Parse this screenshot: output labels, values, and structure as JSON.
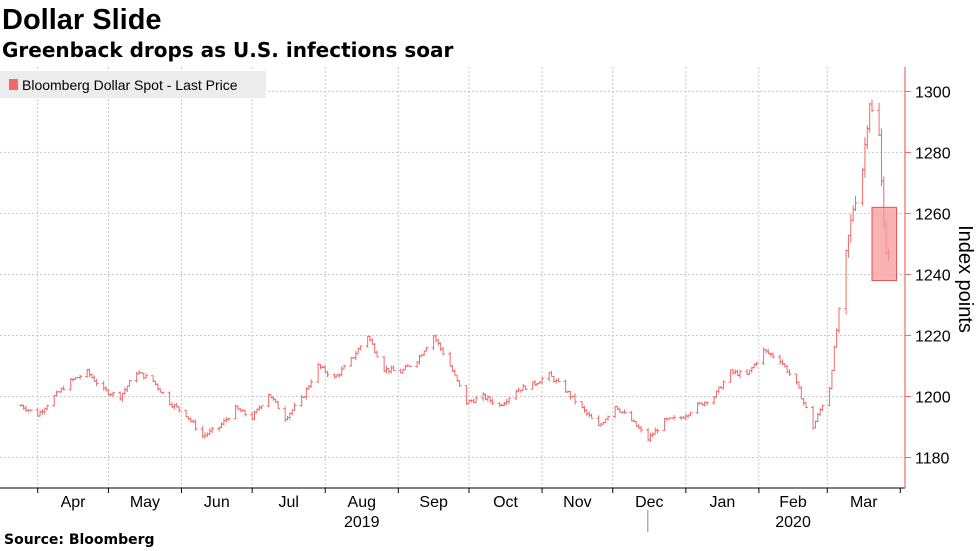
{
  "header": {
    "title": "Dollar Slide",
    "subtitle": "Greenback drops as U.S. infections soar"
  },
  "footer": {
    "source": "Source: Bloomberg"
  },
  "colors": {
    "series": "#f06a6a",
    "highlight_fill": "#f79a9a",
    "highlight_stroke": "#e15656",
    "grid": "#c8c8c8",
    "axis": "#f06a6a"
  },
  "chart_data": {
    "type": "line",
    "subtype": "ohlc-bar",
    "title": "Dollar Slide",
    "subtitle": "Greenback drops as U.S. infections soar",
    "xlabel": "",
    "ylabel": "Index points",
    "ylim": [
      1170,
      1308
    ],
    "yticks": [
      1180,
      1200,
      1220,
      1240,
      1260,
      1280,
      1300
    ],
    "y_axis_side": "right",
    "x_month_labels": [
      "Apr",
      "May",
      "Jun",
      "Jul",
      "Aug",
      "Sep",
      "Oct",
      "Nov",
      "Dec",
      "Jan",
      "Feb",
      "Mar"
    ],
    "x_year_labels": [
      "2019",
      "2020"
    ],
    "grid": true,
    "legend": {
      "position": "top-left",
      "entries": [
        "Bloomberg Dollar Spot - Last Price"
      ]
    },
    "series": [
      {
        "name": "Bloomberg Dollar Spot - Last Price",
        "x": [
          "2019-03-25",
          "2019-04-01",
          "2019-04-08",
          "2019-04-15",
          "2019-04-22",
          "2019-04-29",
          "2019-05-06",
          "2019-05-13",
          "2019-05-20",
          "2019-05-27",
          "2019-06-03",
          "2019-06-10",
          "2019-06-17",
          "2019-06-24",
          "2019-07-01",
          "2019-07-08",
          "2019-07-15",
          "2019-07-22",
          "2019-07-29",
          "2019-08-05",
          "2019-08-12",
          "2019-08-19",
          "2019-08-26",
          "2019-09-02",
          "2019-09-09",
          "2019-09-16",
          "2019-09-23",
          "2019-09-30",
          "2019-10-07",
          "2019-10-14",
          "2019-10-21",
          "2019-10-28",
          "2019-11-04",
          "2019-11-11",
          "2019-11-18",
          "2019-11-25",
          "2019-12-02",
          "2019-12-09",
          "2019-12-16",
          "2019-12-23",
          "2019-12-30",
          "2020-01-06",
          "2020-01-13",
          "2020-01-20",
          "2020-01-27",
          "2020-02-03",
          "2020-02-10",
          "2020-02-17",
          "2020-02-24",
          "2020-03-02",
          "2020-03-06",
          "2020-03-10",
          "2020-03-12",
          "2020-03-16",
          "2020-03-18",
          "2020-03-19",
          "2020-03-20",
          "2020-03-23",
          "2020-03-24",
          "2020-03-25",
          "2020-03-26",
          "2020-03-27"
        ],
        "values": [
          1197,
          1194,
          1200,
          1205,
          1208,
          1202,
          1200,
          1208,
          1205,
          1198,
          1194,
          1187,
          1190,
          1196,
          1193,
          1201,
          1193,
          1199,
          1210,
          1206,
          1212,
          1220,
          1209,
          1208,
          1212,
          1220,
          1210,
          1198,
          1200,
          1197,
          1202,
          1204,
          1207,
          1202,
          1196,
          1190,
          1197,
          1192,
          1186,
          1192,
          1193,
          1197,
          1200,
          1208,
          1207,
          1215,
          1212,
          1204,
          1190,
          1203,
          1228,
          1252,
          1262,
          1275,
          1290,
          1297,
          1293,
          1285,
          1270,
          1258,
          1248,
          1246
        ]
      }
    ],
    "highlight": {
      "shape": "rectangle",
      "x_range": [
        "2020-03-20",
        "2020-03-27"
      ],
      "y_range": [
        1238,
        1262
      ]
    }
  }
}
